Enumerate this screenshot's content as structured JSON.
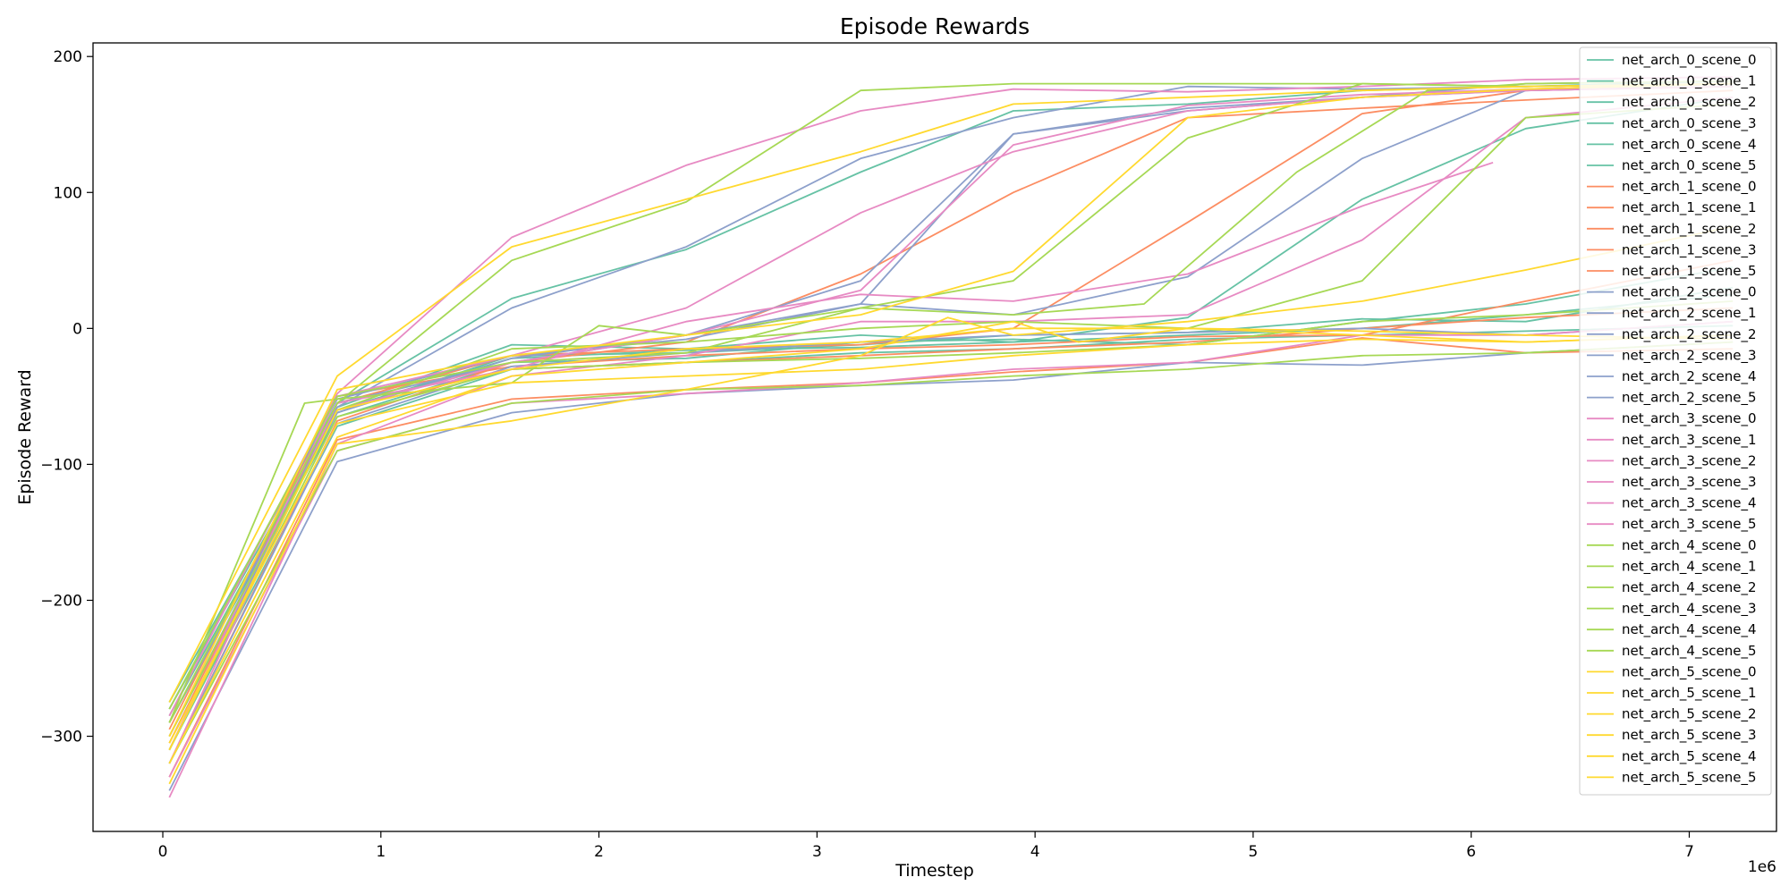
{
  "chart_data": {
    "type": "line",
    "title": "Episode Rewards",
    "xlabel": "Timestep",
    "ylabel": "Episode Reward",
    "x_scale_label": "1e6",
    "xlim": [
      -0.32,
      7.4
    ],
    "ylim": [
      -370,
      210
    ],
    "xticks": [
      0,
      1,
      2,
      3,
      4,
      5,
      6,
      7
    ],
    "yticks": [
      -300,
      -200,
      -100,
      0,
      100,
      200
    ],
    "ytick_labels": [
      "−300",
      "−200",
      "−100",
      "0",
      "100",
      "200"
    ],
    "legend_position": "top-right",
    "series_colors": {
      "net_arch_0": "#66c2a5",
      "net_arch_1": "#fc8d62",
      "net_arch_2": "#8da0cb",
      "net_arch_3": "#e78ac3",
      "net_arch_4": "#a6d854",
      "net_arch_5": "#ffd92f"
    },
    "series": [
      {
        "name": "net_arch_0_scene_0",
        "color": "#66c2a5",
        "x": [
          0.03,
          0.8,
          1.6,
          2.4,
          3.2,
          3.9,
          4.7,
          5.5,
          6.25,
          7.2
        ],
        "y": [
          -280,
          -58,
          -12,
          -15,
          -5,
          -10,
          8,
          95,
          147,
          170
        ]
      },
      {
        "name": "net_arch_0_scene_1",
        "color": "#66c2a5",
        "x": [
          0.03,
          0.8,
          1.6,
          2.4,
          3.2,
          3.9,
          4.7,
          5.5,
          6.25,
          7.2
        ],
        "y": [
          -300,
          -62,
          -20,
          -18,
          -12,
          -5,
          -3,
          7,
          5,
          30
        ]
      },
      {
        "name": "net_arch_0_scene_2",
        "color": "#66c2a5",
        "x": [
          0.03,
          0.8,
          1.6,
          2.4,
          3.2,
          3.9,
          4.7,
          5.5,
          6.25,
          7.2
        ],
        "y": [
          -275,
          -55,
          22,
          58,
          115,
          160,
          165,
          175,
          178,
          182
        ]
      },
      {
        "name": "net_arch_0_scene_3",
        "color": "#66c2a5",
        "x": [
          0.03,
          0.8,
          1.6,
          2.4,
          3.2,
          3.9,
          4.7,
          5.5,
          6.25,
          7.2
        ],
        "y": [
          -290,
          -65,
          -25,
          -22,
          -10,
          -8,
          -12,
          5,
          18,
          45
        ]
      },
      {
        "name": "net_arch_0_scene_4",
        "color": "#66c2a5",
        "x": [
          0.03,
          0.8,
          1.6,
          2.4,
          3.2,
          3.9,
          4.7,
          5.5,
          6.25,
          7.2
        ],
        "y": [
          -310,
          -72,
          -30,
          -25,
          -18,
          -15,
          -8,
          -5,
          -2,
          2
        ]
      },
      {
        "name": "net_arch_0_scene_5",
        "color": "#66c2a5",
        "x": [
          0.03,
          0.8,
          1.6,
          2.4,
          3.2,
          3.9,
          4.7,
          5.5,
          6.25,
          7.2
        ],
        "y": [
          -285,
          -60,
          -22,
          -16,
          -14,
          -10,
          -5,
          0,
          10,
          25
        ]
      },
      {
        "name": "net_arch_1_scene_0",
        "color": "#fc8d62",
        "x": [
          0.03,
          0.8,
          1.6,
          2.4,
          3.2,
          3.9,
          4.7,
          5.5,
          6.25,
          7.2
        ],
        "y": [
          -295,
          -50,
          -28,
          -20,
          -15,
          -12,
          -6,
          -5,
          20,
          50
        ]
      },
      {
        "name": "net_arch_1_scene_1",
        "color": "#fc8d62",
        "x": [
          0.03,
          0.8,
          1.6,
          2.4,
          3.2,
          3.9,
          4.7,
          5.5,
          6.25,
          7.2
        ],
        "y": [
          -320,
          -68,
          -25,
          -10,
          40,
          100,
          155,
          162,
          168,
          175
        ]
      },
      {
        "name": "net_arch_1_scene_2",
        "color": "#fc8d62",
        "x": [
          0.03,
          0.8,
          1.6,
          2.4,
          3.2,
          3.9,
          4.7,
          5.5,
          6.25,
          7.2
        ],
        "y": [
          -330,
          -82,
          -52,
          -45,
          -40,
          -32,
          -25,
          -7,
          -18,
          -15
        ]
      },
      {
        "name": "net_arch_1_scene_3",
        "color": "#fc8d62",
        "x": [
          0.03,
          0.8,
          1.6,
          2.4,
          3.2,
          3.9,
          4.7,
          5.5,
          6.25,
          7.2
        ],
        "y": [
          -305,
          -55,
          -20,
          -15,
          -12,
          0,
          78,
          158,
          175,
          178
        ]
      },
      {
        "name": "net_arch_1_scene_5",
        "color": "#fc8d62",
        "x": [
          0.03,
          0.8,
          1.6,
          2.4,
          3.2,
          3.9,
          4.7,
          5.5,
          6.25,
          7.2
        ],
        "y": [
          -290,
          -60,
          -30,
          -25,
          -20,
          -15,
          -10,
          0,
          8,
          15
        ]
      },
      {
        "name": "net_arch_2_scene_0",
        "color": "#8da0cb",
        "x": [
          0.03,
          0.8,
          1.6,
          2.4,
          3.2,
          3.9,
          4.7,
          5.5,
          6.25,
          7.2
        ],
        "y": [
          -280,
          -52,
          -20,
          -8,
          18,
          10,
          38,
          125,
          175,
          178
        ]
      },
      {
        "name": "net_arch_2_scene_1",
        "color": "#8da0cb",
        "x": [
          0.03,
          0.8,
          1.6,
          2.4,
          3.2,
          3.9,
          4.7,
          5.5,
          6.25,
          7.2
        ],
        "y": [
          -290,
          -62,
          -22,
          -5,
          35,
          143,
          162,
          170,
          180,
          182
        ]
      },
      {
        "name": "net_arch_2_scene_2",
        "color": "#8da0cb",
        "x": [
          0.03,
          0.8,
          1.6,
          2.4,
          3.2,
          3.9,
          4.7,
          5.5,
          6.25,
          7.2
        ],
        "y": [
          -300,
          -58,
          15,
          60,
          125,
          155,
          178,
          176,
          178,
          180
        ]
      },
      {
        "name": "net_arch_2_scene_3",
        "color": "#8da0cb",
        "x": [
          0.03,
          0.8,
          1.6,
          2.4,
          3.2,
          3.9,
          4.7,
          5.5,
          6.25,
          7.2
        ],
        "y": [
          -320,
          -70,
          -28,
          -18,
          -10,
          -5,
          -3,
          0,
          -5,
          5
        ]
      },
      {
        "name": "net_arch_2_scene_4",
        "color": "#8da0cb",
        "x": [
          0.03,
          0.8,
          1.6,
          2.4,
          3.2,
          3.9,
          4.7,
          5.5,
          6.25,
          7.2
        ],
        "y": [
          -310,
          -55,
          -25,
          -5,
          18,
          143,
          160,
          170,
          175,
          180
        ]
      },
      {
        "name": "net_arch_2_scene_5",
        "color": "#8da0cb",
        "x": [
          0.03,
          0.8,
          1.6,
          2.4,
          3.2,
          3.9,
          4.7,
          5.5,
          6.25,
          7.2
        ],
        "y": [
          -340,
          -98,
          -62,
          -48,
          -42,
          -38,
          -25,
          -27,
          -18,
          -10
        ]
      },
      {
        "name": "net_arch_3_scene_0",
        "color": "#e78ac3",
        "x": [
          0.03,
          0.8,
          1.6,
          2.4,
          3.2,
          3.9,
          4.7,
          5.5,
          6.25,
          7.2
        ],
        "y": [
          -285,
          -48,
          67,
          120,
          160,
          176,
          174,
          178,
          183,
          185
        ]
      },
      {
        "name": "net_arch_3_scene_1",
        "color": "#e78ac3",
        "x": [
          0.03,
          0.8,
          1.6,
          2.4,
          3.2,
          3.9,
          4.7,
          5.5,
          6.25,
          7.2
        ],
        "y": [
          -300,
          -60,
          -25,
          -5,
          28,
          135,
          164,
          172,
          176,
          180
        ]
      },
      {
        "name": "net_arch_3_scene_2",
        "color": "#e78ac3",
        "x": [
          0.03,
          0.8,
          1.6,
          2.4,
          3.2,
          3.9,
          4.7,
          5.5,
          6.25,
          7.2
        ],
        "y": [
          -330,
          -90,
          -55,
          -48,
          -40,
          -30,
          -25,
          -5,
          -5,
          5
        ]
      },
      {
        "name": "net_arch_3_scene_3",
        "color": "#e78ac3",
        "x": [
          0.03,
          0.8,
          1.6,
          2.4,
          3.2,
          3.9,
          4.7,
          5.5,
          6.25,
          7.2
        ],
        "y": [
          -310,
          -50,
          -20,
          15,
          85,
          130,
          160,
          170,
          175,
          178
        ]
      },
      {
        "name": "net_arch_3_scene_4",
        "color": "#e78ac3",
        "x": [
          0.03,
          0.8,
          1.6,
          2.4,
          3.2,
          3.9,
          4.7,
          5.5,
          6.1
        ],
        "y": [
          -320,
          -55,
          -30,
          5,
          25,
          20,
          40,
          90,
          122
        ]
      },
      {
        "name": "net_arch_3_scene_5",
        "color": "#e78ac3",
        "x": [
          0.03,
          0.8,
          1.6,
          2.4,
          3.2,
          3.9,
          4.7,
          5.5,
          6.25,
          7.2
        ],
        "y": [
          -345,
          -85,
          -35,
          -20,
          5,
          5,
          10,
          65,
          155,
          170
        ]
      },
      {
        "name": "net_arch_4_scene_0",
        "color": "#a6d854",
        "x": [
          0.03,
          0.8,
          1.6,
          2.4,
          3.2,
          3.9,
          4.7,
          5.5,
          6.25,
          7.2
        ],
        "y": [
          -290,
          -55,
          50,
          93,
          175,
          180,
          180,
          180,
          178,
          180
        ]
      },
      {
        "name": "net_arch_4_scene_1",
        "color": "#a6d854",
        "x": [
          0.03,
          0.8,
          1.6,
          2.4,
          3.2,
          3.9,
          4.7,
          5.5,
          6.25,
          7.2
        ],
        "y": [
          -300,
          -60,
          -15,
          -10,
          0,
          5,
          0,
          35,
          155,
          165
        ]
      },
      {
        "name": "net_arch_4_scene_2",
        "color": "#a6d854",
        "x": [
          0.03,
          0.8,
          1.6,
          2.4,
          3.2,
          3.9,
          4.7,
          5.5,
          6.25,
          7.2
        ],
        "y": [
          -280,
          -50,
          -25,
          -18,
          15,
          35,
          140,
          180,
          178,
          180
        ]
      },
      {
        "name": "net_arch_4_scene_3",
        "color": "#a6d854",
        "x": [
          0.03,
          0.8,
          1.6,
          2.4,
          3.2,
          3.9,
          4.7,
          5.5,
          6.25,
          7.2
        ],
        "y": [
          -310,
          -65,
          -30,
          -25,
          -22,
          -18,
          -12,
          5,
          10,
          20
        ]
      },
      {
        "name": "net_arch_4_scene_4",
        "color": "#a6d854",
        "x": [
          0.03,
          0.65,
          0.8,
          1.6,
          2.0,
          2.4,
          3.2,
          3.9,
          4.5,
          5.2,
          5.8,
          6.25,
          7.2
        ],
        "y": [
          -290,
          -55,
          -52,
          -40,
          2,
          -5,
          15,
          10,
          18,
          115,
          175,
          180,
          182
        ]
      },
      {
        "name": "net_arch_4_scene_5",
        "color": "#a6d854",
        "x": [
          0.03,
          0.8,
          1.6,
          2.4,
          3.2,
          3.9,
          4.7,
          5.5,
          6.25,
          7.2
        ],
        "y": [
          -320,
          -90,
          -55,
          -45,
          -42,
          -35,
          -30,
          -20,
          -18,
          -10
        ]
      },
      {
        "name": "net_arch_5_scene_0",
        "color": "#ffd92f",
        "x": [
          0.03,
          0.8,
          1.6,
          2.4,
          3.2,
          3.9,
          4.7,
          5.5,
          6.25,
          7.2
        ],
        "y": [
          -275,
          -35,
          60,
          95,
          130,
          165,
          170,
          175,
          178,
          180
        ]
      },
      {
        "name": "net_arch_5_scene_1",
        "color": "#ffd92f",
        "x": [
          0.03,
          0.8,
          1.6,
          2.4,
          3.2,
          3.9,
          4.7,
          5.5,
          6.25,
          7.2
        ],
        "y": [
          -300,
          -45,
          -20,
          -5,
          10,
          42,
          155,
          170,
          176,
          180
        ]
      },
      {
        "name": "net_arch_5_scene_2",
        "color": "#ffd92f",
        "x": [
          0.03,
          0.8,
          1.6,
          2.4,
          3.2,
          3.9,
          4.7,
          5.5,
          6.25,
          7.2
        ],
        "y": [
          -310,
          -60,
          -30,
          -15,
          -10,
          0,
          0,
          -5,
          -10,
          -5
        ]
      },
      {
        "name": "net_arch_5_scene_3",
        "color": "#ffd92f",
        "x": [
          0.03,
          0.8,
          1.6,
          2.4,
          3.2,
          3.6,
          3.9,
          4.7,
          5.5,
          6.25,
          7.2
        ],
        "y": [
          -335,
          -85,
          -68,
          -45,
          -20,
          8,
          -5,
          5,
          20,
          43,
          75
        ]
      },
      {
        "name": "net_arch_5_scene_4",
        "color": "#ffd92f",
        "x": [
          0.03,
          0.8,
          1.6,
          2.4,
          3.2,
          3.9,
          4.2,
          4.7,
          5.5,
          6.25,
          7.2
        ],
        "y": [
          -320,
          -80,
          -35,
          -25,
          -15,
          5,
          -10,
          0,
          -2,
          -5,
          -8
        ]
      },
      {
        "name": "net_arch_5_scene_5",
        "color": "#ffd92f",
        "x": [
          0.03,
          0.8,
          1.6,
          2.4,
          3.2,
          3.9,
          4.7,
          5.5,
          6.25,
          7.2
        ],
        "y": [
          -305,
          -70,
          -40,
          -35,
          -30,
          -20,
          -12,
          -8,
          -10,
          -5
        ]
      }
    ]
  }
}
